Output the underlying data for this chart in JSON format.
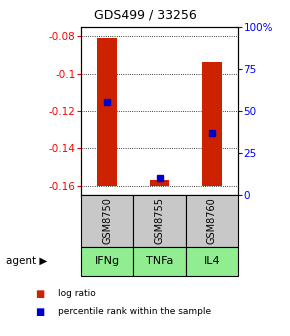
{
  "title": "GDS499 / 33256",
  "samples": [
    "GSM8750",
    "GSM8755",
    "GSM8760"
  ],
  "agents": [
    "IFNg",
    "TNFa",
    "IL4"
  ],
  "sample_bg": "#c8c8c8",
  "agent_bg": "#90ee90",
  "bar_bottom": -0.16,
  "log_ratios": [
    -0.081,
    -0.157,
    -0.094
  ],
  "percentile_ranks": [
    0.55,
    0.1,
    0.37
  ],
  "ylim_left": [
    -0.165,
    -0.075
  ],
  "ylim_right": [
    0,
    100
  ],
  "left_ticks": [
    -0.08,
    -0.1,
    -0.12,
    -0.14,
    -0.16
  ],
  "right_ticks": [
    0,
    25,
    50,
    75,
    100
  ],
  "right_tick_labels": [
    "0",
    "25",
    "50",
    "75",
    "100%"
  ],
  "bar_color": "#cc2200",
  "dot_color": "#0000cc",
  "legend_log_ratio": "log ratio",
  "legend_percentile": "percentile rank within the sample",
  "title_fontsize": 9,
  "tick_fontsize": 7.5,
  "label_fontsize": 7.5
}
